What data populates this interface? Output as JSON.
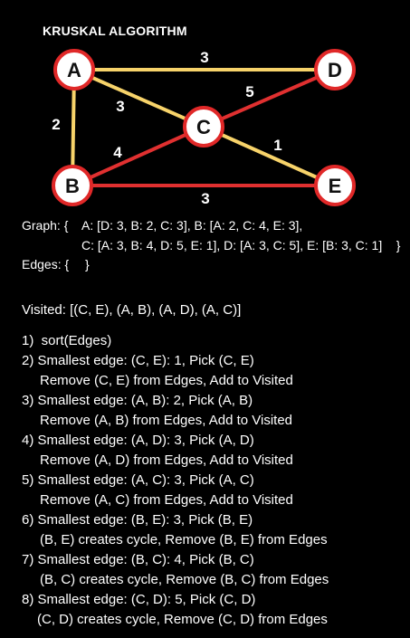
{
  "title": "KRUSKAL ALGORITHM",
  "colors": {
    "node_stroke": "#e02828",
    "node_fill": "#ffffff",
    "selected_edge": "#f7d36a",
    "rejected_edge": "#e03030",
    "background": "#000000"
  },
  "nodes": [
    {
      "id": "A",
      "label": "A"
    },
    {
      "id": "B",
      "label": "B"
    },
    {
      "id": "C",
      "label": "C"
    },
    {
      "id": "D",
      "label": "D"
    },
    {
      "id": "E",
      "label": "E"
    }
  ],
  "edges": [
    {
      "from": "A",
      "to": "D",
      "weight": "3",
      "status": "selected"
    },
    {
      "from": "A",
      "to": "C",
      "weight": "3",
      "status": "selected"
    },
    {
      "from": "A",
      "to": "B",
      "weight": "2",
      "status": "selected"
    },
    {
      "from": "C",
      "to": "D",
      "weight": "5",
      "status": "rejected"
    },
    {
      "from": "B",
      "to": "C",
      "weight": "4",
      "status": "rejected"
    },
    {
      "from": "C",
      "to": "E",
      "weight": "1",
      "status": "selected"
    },
    {
      "from": "B",
      "to": "E",
      "weight": "3",
      "status": "rejected"
    }
  ],
  "graph_text": {
    "label": "Graph: {",
    "line1": "A: [D: 3, B: 2, C: 3], B: [A: 2, C: 4, E: 3],",
    "line2": "C: [A: 3, B: 4, D: 5, E: 1], D: [A: 3, C: 5], E: [B: 3, C: 1]    }"
  },
  "edges_text": {
    "label": "Edges: {",
    "close": "}"
  },
  "visited_text": "Visited: [(C, E), (A, B), (A, D), (A, C)]",
  "steps": [
    {
      "main": "1)  sort(Edges)"
    },
    {
      "main": "2) Smallest edge: (C, E): 1, Pick (C, E)",
      "sub": "Remove (C, E) from Edges, Add to Visited"
    },
    {
      "main": "3) Smallest edge: (A, B): 2, Pick (A, B)",
      "sub": "Remove (A, B) from Edges, Add to Visited"
    },
    {
      "main": "4) Smallest edge: (A, D): 3, Pick (A, D)",
      "sub": "Remove (A, D) from Edges, Add to Visited"
    },
    {
      "main": "5) Smallest edge: (A, C): 3, Pick (A, C)",
      "sub": "Remove (A, C) from Edges, Add to Visited"
    },
    {
      "main": "6) Smallest edge: (B, E): 3, Pick (B, E)",
      "sub": "(B, E) creates cycle, Remove (B, E) from Edges"
    },
    {
      "main": "7) Smallest edge: (B, C): 4, Pick (B, C)",
      "sub": "(B, C) creates cycle, Remove (B, C) from Edges"
    },
    {
      "main": "8) Smallest edge: (C, D): 5, Pick (C, D)",
      "sub": "(C, D) creates cycle, Remove (C, D) from Edges"
    }
  ]
}
